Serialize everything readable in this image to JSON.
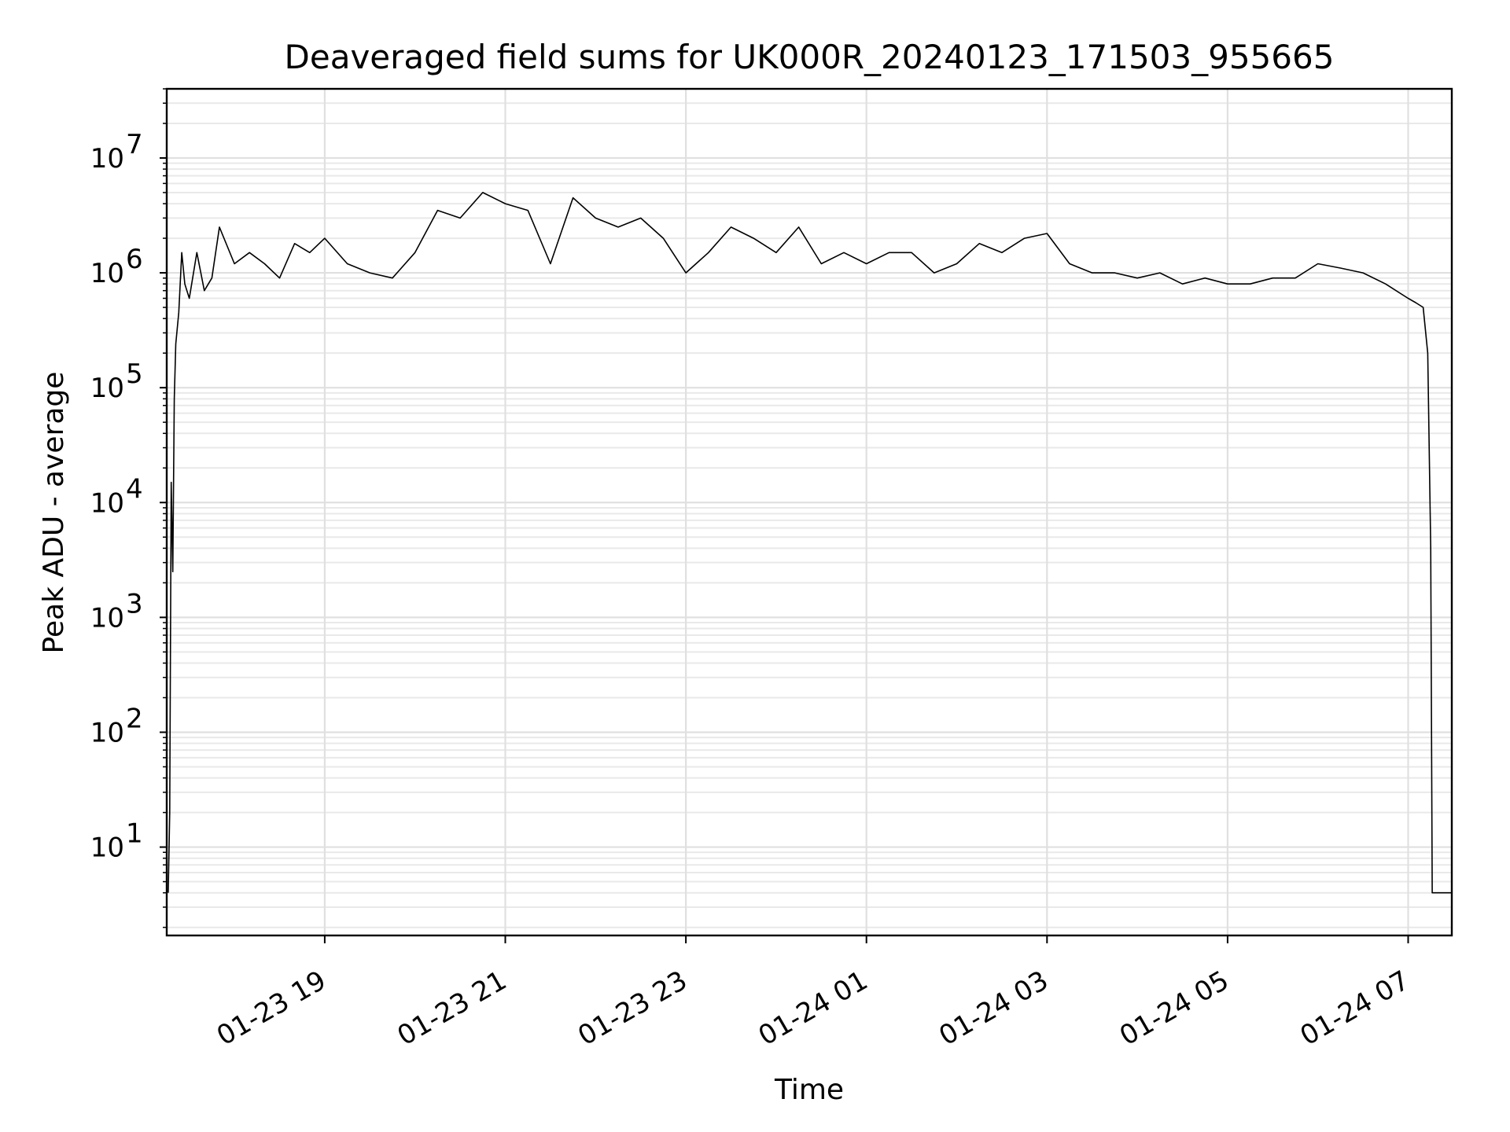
{
  "chart_data": {
    "type": "line",
    "title": "Deaveraged field sums for UK000R_20240123_171503_955665",
    "xlabel": "Time",
    "ylabel": "Peak ADU - average",
    "yscale": "log",
    "ylim": [
      1.7,
      40000000
    ],
    "xlim": [
      "2024-01-23 17:15",
      "2024-01-24 07:29"
    ],
    "grid": true,
    "x_ticks": [
      {
        "value": "2024-01-23 19:00",
        "label": "01-23 19"
      },
      {
        "value": "2024-01-23 21:00",
        "label": "01-23 21"
      },
      {
        "value": "2024-01-23 23:00",
        "label": "01-23 23"
      },
      {
        "value": "2024-01-24 01:00",
        "label": "01-24 01"
      },
      {
        "value": "2024-01-24 03:00",
        "label": "01-24 03"
      },
      {
        "value": "2024-01-24 05:00",
        "label": "01-24 05"
      },
      {
        "value": "2024-01-24 07:00",
        "label": "01-24 07"
      }
    ],
    "y_ticks": [
      {
        "value": 10,
        "base": "10",
        "exp": "1"
      },
      {
        "value": 100,
        "base": "10",
        "exp": "2"
      },
      {
        "value": 1000,
        "base": "10",
        "exp": "3"
      },
      {
        "value": 10000,
        "base": "10",
        "exp": "4"
      },
      {
        "value": 100000,
        "base": "10",
        "exp": "5"
      },
      {
        "value": 1000000,
        "base": "10",
        "exp": "6"
      },
      {
        "value": 10000000,
        "base": "10",
        "exp": "7"
      }
    ],
    "series": [
      {
        "color": "#000000",
        "x": [
          "2024-01-23 17:16",
          "2024-01-23 17:17",
          "2024-01-23 17:18",
          "2024-01-23 17:19",
          "2024-01-23 17:20",
          "2024-01-23 17:21",
          "2024-01-23 17:23",
          "2024-01-23 17:25",
          "2024-01-23 17:27",
          "2024-01-23 17:30",
          "2024-01-23 17:35",
          "2024-01-23 17:40",
          "2024-01-23 17:45",
          "2024-01-23 17:50",
          "2024-01-23 18:00",
          "2024-01-23 18:10",
          "2024-01-23 18:20",
          "2024-01-23 18:30",
          "2024-01-23 18:40",
          "2024-01-23 18:50",
          "2024-01-23 19:00",
          "2024-01-23 19:15",
          "2024-01-23 19:30",
          "2024-01-23 19:45",
          "2024-01-23 20:00",
          "2024-01-23 20:15",
          "2024-01-23 20:30",
          "2024-01-23 20:45",
          "2024-01-23 21:00",
          "2024-01-23 21:15",
          "2024-01-23 21:30",
          "2024-01-23 21:45",
          "2024-01-23 22:00",
          "2024-01-23 22:15",
          "2024-01-23 22:30",
          "2024-01-23 22:45",
          "2024-01-23 23:00",
          "2024-01-23 23:15",
          "2024-01-23 23:30",
          "2024-01-23 23:45",
          "2024-01-24 00:00",
          "2024-01-24 00:15",
          "2024-01-24 00:30",
          "2024-01-24 00:45",
          "2024-01-24 01:00",
          "2024-01-24 01:15",
          "2024-01-24 01:30",
          "2024-01-24 01:45",
          "2024-01-24 02:00",
          "2024-01-24 02:15",
          "2024-01-24 02:30",
          "2024-01-24 02:45",
          "2024-01-24 03:00",
          "2024-01-24 03:15",
          "2024-01-24 03:30",
          "2024-01-24 03:45",
          "2024-01-24 04:00",
          "2024-01-24 04:15",
          "2024-01-24 04:30",
          "2024-01-24 04:45",
          "2024-01-24 05:00",
          "2024-01-24 05:15",
          "2024-01-24 05:30",
          "2024-01-24 05:45",
          "2024-01-24 06:00",
          "2024-01-24 06:15",
          "2024-01-24 06:30",
          "2024-01-24 06:45",
          "2024-01-24 07:00",
          "2024-01-24 07:05",
          "2024-01-24 07:10",
          "2024-01-24 07:13",
          "2024-01-24 07:15",
          "2024-01-24 07:16",
          "2024-01-24 07:20",
          "2024-01-24 07:29"
        ],
        "y": [
          4,
          20,
          15000,
          2500,
          80000,
          240000,
          450000,
          1500000,
          800000,
          600000,
          1500000,
          700000,
          900000,
          2500000,
          1200000,
          1500000,
          1200000,
          900000,
          1800000,
          1500000,
          2000000,
          1200000,
          1000000,
          900000,
          1500000,
          3500000,
          3000000,
          5000000,
          4000000,
          3500000,
          1200000,
          4500000,
          3000000,
          2500000,
          3000000,
          2000000,
          1000000,
          1500000,
          2500000,
          2000000,
          1500000,
          2500000,
          1200000,
          1500000,
          1200000,
          1500000,
          1500000,
          1000000,
          1200000,
          1800000,
          1500000,
          2000000,
          2200000,
          1200000,
          1000000,
          1000000,
          900000,
          1000000,
          800000,
          900000,
          800000,
          800000,
          900000,
          900000,
          1200000,
          1100000,
          1000000,
          800000,
          600000,
          550000,
          500000,
          200000,
          4000,
          4,
          4,
          4
        ]
      }
    ]
  }
}
